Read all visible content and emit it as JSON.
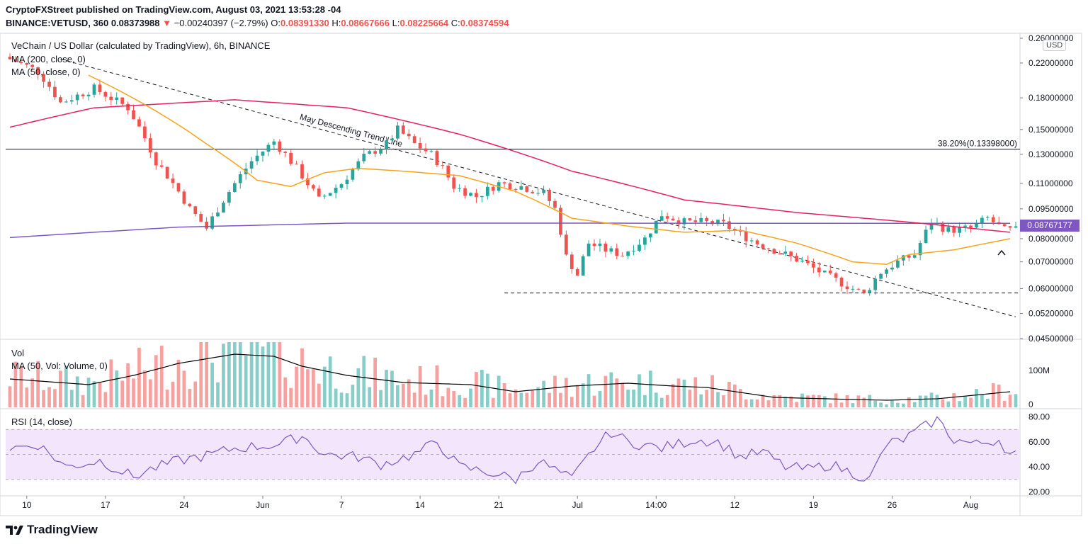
{
  "header": {
    "publisher_line": "CryptoFXStreet published on TradingView.com, August 03, 2021 13:53:28 -04",
    "symbol": "BINANCE:VETUSD, 360",
    "last": "0.08373988",
    "change": "−0.00240397 (−2.79%)",
    "o_label": "O:",
    "o_value": "0.08391330",
    "h_label": "H:",
    "h_value": "0.08667666",
    "l_label": "L:",
    "l_value": "0.08225664",
    "c_label": "C:",
    "c_value": "0.08374594"
  },
  "legend": {
    "title": "VeChain / US Dollar (calculated by TradingView), 6h, BINANCE",
    "ma200": "MA (200, close, 0)",
    "ma50": "MA (50, close, 0)",
    "vol": "Vol",
    "vol_ma": "MA (50, Vol: Volume, 0)",
    "rsi": "RSI (14, close)"
  },
  "currency": "USD",
  "last_price_tag": "0.08767177",
  "branding": "TradingView",
  "colors": {
    "up": "#26a69a",
    "down": "#ef5350",
    "ma200": "#e91e63",
    "ma50": "#f7a21b",
    "long_ma": "#7e57c2",
    "rsi": "#7e57c2",
    "rsi_band": "#f3e5fc",
    "vol_ma": "#000000"
  },
  "icons": [
    "tradingview-logo-icon",
    "caret-up-icon"
  ],
  "chart_data": [
    {
      "type": "candlestick",
      "x_ticks": [
        "10",
        "17",
        "24",
        "Jun",
        "7",
        "14",
        "21",
        "Jul",
        "14:00",
        "12",
        "19",
        "26",
        "Aug"
      ],
      "y_ticks": [
        0.26,
        0.22,
        0.18,
        0.15,
        0.13,
        0.11,
        0.095,
        0.08,
        0.07,
        0.06,
        0.052,
        0.045
      ],
      "y_tick_labels": [
        "0.26000000",
        "0.22000000",
        "0.18000000",
        "0.15000000",
        "0.13000000",
        "0.11000000",
        "0.09500000",
        "0.08000000",
        "0.07000000",
        "0.06000000",
        "0.05200000",
        "0.04500000"
      ],
      "scale": "log",
      "ylim": [
        0.045,
        0.26
      ],
      "close_path": [
        [
          0,
          0.228
        ],
        [
          6,
          0.21
        ],
        [
          10,
          0.175
        ],
        [
          16,
          0.19
        ],
        [
          22,
          0.17
        ],
        [
          27,
          0.125
        ],
        [
          30,
          0.11
        ],
        [
          33,
          0.095
        ],
        [
          36,
          0.085
        ],
        [
          39,
          0.1
        ],
        [
          44,
          0.125
        ],
        [
          48,
          0.14
        ],
        [
          52,
          0.12
        ],
        [
          56,
          0.1
        ],
        [
          60,
          0.11
        ],
        [
          64,
          0.128
        ],
        [
          68,
          0.138
        ],
        [
          70,
          0.15
        ],
        [
          73,
          0.138
        ],
        [
          76,
          0.13
        ],
        [
          78,
          0.12
        ],
        [
          80,
          0.108
        ],
        [
          84,
          0.102
        ],
        [
          88,
          0.11
        ],
        [
          92,
          0.108
        ],
        [
          96,
          0.104
        ],
        [
          98,
          0.095
        ],
        [
          100,
          0.072
        ],
        [
          102,
          0.065
        ],
        [
          104,
          0.078
        ],
        [
          107,
          0.075
        ],
        [
          110,
          0.073
        ],
        [
          114,
          0.08
        ],
        [
          117,
          0.092
        ],
        [
          121,
          0.088
        ],
        [
          124,
          0.088
        ],
        [
          128,
          0.087
        ],
        [
          131,
          0.082
        ],
        [
          134,
          0.078
        ],
        [
          138,
          0.074
        ],
        [
          142,
          0.07
        ],
        [
          146,
          0.065
        ],
        [
          150,
          0.061
        ],
        [
          153,
          0.058
        ],
        [
          156,
          0.066
        ],
        [
          159,
          0.07
        ],
        [
          162,
          0.073
        ],
        [
          165,
          0.088
        ],
        [
          168,
          0.084
        ],
        [
          172,
          0.085
        ],
        [
          175,
          0.09
        ],
        [
          178,
          0.084
        ]
      ],
      "ma200_path": [
        [
          0,
          0.152
        ],
        [
          15,
          0.17
        ],
        [
          40,
          0.178
        ],
        [
          60,
          0.17
        ],
        [
          80,
          0.146
        ],
        [
          100,
          0.118
        ],
        [
          120,
          0.1
        ],
        [
          140,
          0.093
        ],
        [
          160,
          0.088
        ],
        [
          178,
          0.083
        ]
      ],
      "ma50_path": [
        [
          14,
          0.205
        ],
        [
          25,
          0.17
        ],
        [
          35,
          0.138
        ],
        [
          44,
          0.112
        ],
        [
          50,
          0.108
        ],
        [
          56,
          0.117
        ],
        [
          62,
          0.12
        ],
        [
          70,
          0.118
        ],
        [
          80,
          0.115
        ],
        [
          90,
          0.105
        ],
        [
          100,
          0.09
        ],
        [
          110,
          0.086
        ],
        [
          120,
          0.083
        ],
        [
          130,
          0.084
        ],
        [
          140,
          0.078
        ],
        [
          150,
          0.07
        ],
        [
          156,
          0.069
        ],
        [
          160,
          0.073
        ],
        [
          168,
          0.075
        ],
        [
          178,
          0.08
        ]
      ],
      "long_ma_path": [
        [
          0,
          0.0805
        ],
        [
          30,
          0.0855
        ],
        [
          60,
          0.0875
        ],
        [
          100,
          0.0875
        ],
        [
          140,
          0.0874
        ],
        [
          178,
          0.0874
        ]
      ],
      "annotations": [
        {
          "label": "May Descending Trend Line",
          "type": "trend-line",
          "from": [
            9,
            0.225
          ],
          "to": [
            179,
            0.051
          ]
        },
        {
          "label": "38.20%(0.13398000)",
          "type": "horizontal",
          "y": 0.13398
        },
        {
          "label": "",
          "type": "horizontal-dashed",
          "y": 0.0585,
          "x_from": 88
        }
      ]
    },
    {
      "type": "bar",
      "name": "Vol",
      "y_ticks": [
        "100M",
        "0"
      ],
      "ma_path": [
        [
          0,
          40
        ],
        [
          14,
          32
        ],
        [
          22,
          45
        ],
        [
          30,
          62
        ],
        [
          40,
          75
        ],
        [
          47,
          72
        ],
        [
          52,
          58
        ],
        [
          60,
          45
        ],
        [
          70,
          35
        ],
        [
          82,
          32
        ],
        [
          90,
          22
        ],
        [
          100,
          30
        ],
        [
          110,
          34
        ],
        [
          118,
          30
        ],
        [
          124,
          28
        ],
        [
          136,
          14
        ],
        [
          150,
          11
        ],
        [
          156,
          10
        ],
        [
          165,
          12
        ],
        [
          178,
          22
        ]
      ]
    },
    {
      "type": "line",
      "name": "RSI",
      "y_ticks": [
        80,
        60,
        40,
        20
      ],
      "band": [
        30,
        70
      ],
      "ylim": [
        18,
        86
      ],
      "values_path": [
        [
          0,
          55
        ],
        [
          5,
          58
        ],
        [
          10,
          40
        ],
        [
          16,
          45
        ],
        [
          22,
          32
        ],
        [
          25,
          38
        ],
        [
          30,
          45
        ],
        [
          36,
          50
        ],
        [
          40,
          55
        ],
        [
          48,
          58
        ],
        [
          52,
          65
        ],
        [
          56,
          50
        ],
        [
          62,
          48
        ],
        [
          66,
          42
        ],
        [
          72,
          50
        ],
        [
          76,
          60
        ],
        [
          80,
          40
        ],
        [
          86,
          35
        ],
        [
          90,
          30
        ],
        [
          94,
          45
        ],
        [
          98,
          35
        ],
        [
          100,
          30
        ],
        [
          104,
          55
        ],
        [
          107,
          68
        ],
        [
          110,
          60
        ],
        [
          116,
          55
        ],
        [
          122,
          62
        ],
        [
          126,
          60
        ],
        [
          130,
          48
        ],
        [
          134,
          52
        ],
        [
          138,
          40
        ],
        [
          142,
          38
        ],
        [
          146,
          42
        ],
        [
          150,
          35
        ],
        [
          153,
          30
        ],
        [
          156,
          58
        ],
        [
          159,
          62
        ],
        [
          162,
          70
        ],
        [
          165,
          78
        ],
        [
          168,
          62
        ],
        [
          172,
          58
        ],
        [
          176,
          62
        ],
        [
          178,
          50
        ]
      ]
    }
  ]
}
